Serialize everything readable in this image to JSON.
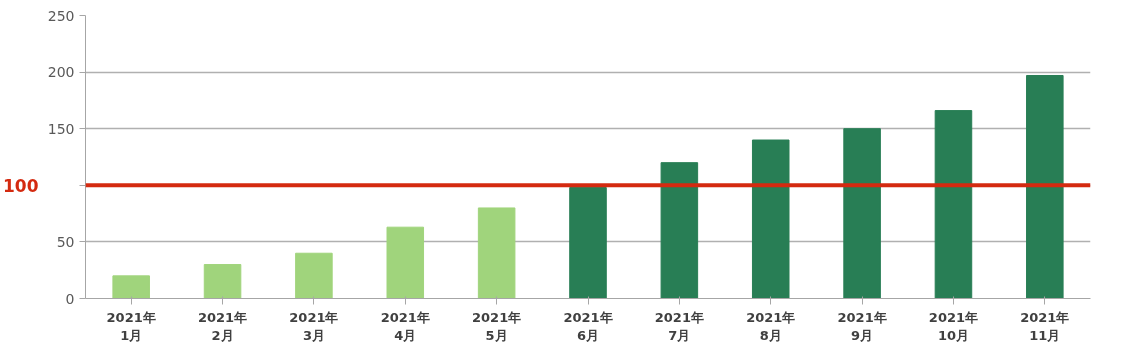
{
  "chart_data": {
    "type": "bar",
    "categories": [
      "2021年\n1月",
      "2021年\n2月",
      "2021年\n3月",
      "2021年\n4月",
      "2021年\n5月",
      "2021年\n6月",
      "2021年\n7月",
      "2021年\n8月",
      "2021年\n9月",
      "2021年\n10月",
      "2021年\n11月"
    ],
    "values": [
      20,
      30,
      40,
      63,
      80,
      98,
      120,
      140,
      150,
      166,
      197
    ],
    "colors": [
      "#a0d47c",
      "#a0d47c",
      "#a0d47c",
      "#a0d47c",
      "#a0d47c",
      "#287e55",
      "#287e55",
      "#287e55",
      "#287e55",
      "#287e55",
      "#287e55"
    ],
    "ylim": [
      0,
      250
    ],
    "yticks": [
      0,
      50,
      {
        "value": 100,
        "label": null
      },
      150,
      200,
      250
    ],
    "grid": "y",
    "ref_lines": [
      {
        "axis": "y",
        "value": 100,
        "label": "100",
        "color": "#d42a10"
      }
    ]
  }
}
